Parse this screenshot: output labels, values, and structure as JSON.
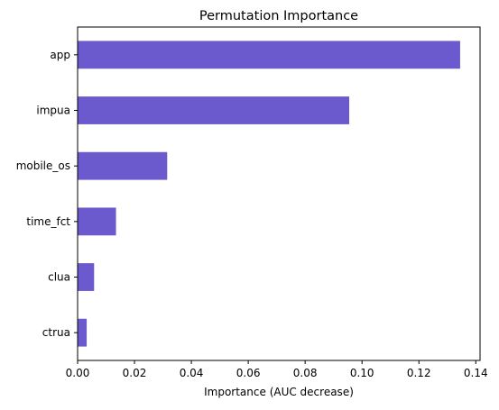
{
  "chart_data": {
    "type": "bar",
    "orientation": "horizontal",
    "title": "Permutation Importance",
    "xlabel": "Importance (AUC decrease)",
    "ylabel": "",
    "categories": [
      "app",
      "impua",
      "mobile_os",
      "time_fct",
      "clua",
      "ctrua"
    ],
    "values": [
      0.1345,
      0.0955,
      0.0315,
      0.0135,
      0.0058,
      0.0032
    ],
    "xlim": [
      0,
      0.1415
    ],
    "xticks": [
      0,
      0.02,
      0.04,
      0.06,
      0.08,
      0.1,
      0.12,
      0.14
    ],
    "xtick_labels": [
      "0.00",
      "0.02",
      "0.04",
      "0.06",
      "0.08",
      "0.10",
      "0.12",
      "0.14"
    ],
    "bar_color": "#6a5acd",
    "grid": false,
    "legend": "none"
  }
}
